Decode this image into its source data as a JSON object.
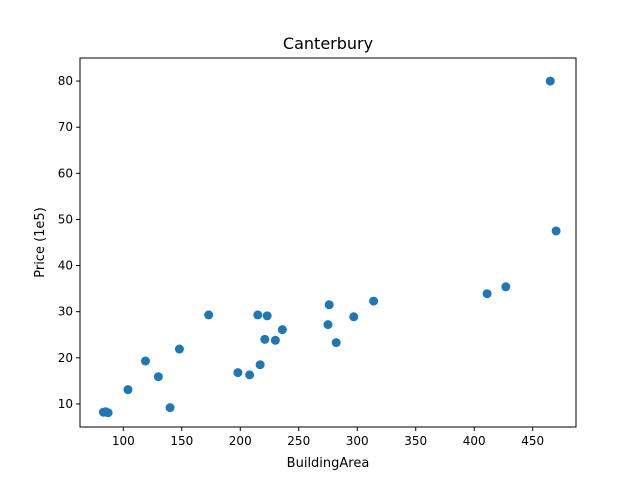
{
  "chart_data": {
    "type": "scatter",
    "title": "Canterbury",
    "xlabel": "BuildingArea",
    "ylabel": "Price (1e5)",
    "xlim": [
      63,
      487
    ],
    "ylim": [
      5,
      85
    ],
    "grid": false,
    "xticks": [
      100,
      150,
      200,
      250,
      300,
      350,
      400,
      450
    ],
    "yticks": [
      10,
      20,
      30,
      40,
      50,
      60,
      70,
      80
    ],
    "marker_color": "#1f77b4",
    "series": [
      {
        "points": [
          {
            "x": 83,
            "y": 8.2
          },
          {
            "x": 85,
            "y": 8.3
          },
          {
            "x": 87,
            "y": 8.1
          },
          {
            "x": 104,
            "y": 13.1
          },
          {
            "x": 119,
            "y": 19.3
          },
          {
            "x": 130,
            "y": 15.9
          },
          {
            "x": 140,
            "y": 9.2
          },
          {
            "x": 148,
            "y": 21.9
          },
          {
            "x": 173,
            "y": 29.3
          },
          {
            "x": 198,
            "y": 16.8
          },
          {
            "x": 208,
            "y": 16.3
          },
          {
            "x": 215,
            "y": 29.3
          },
          {
            "x": 217,
            "y": 18.5
          },
          {
            "x": 221,
            "y": 24.0
          },
          {
            "x": 223,
            "y": 29.1
          },
          {
            "x": 230,
            "y": 23.8
          },
          {
            "x": 236,
            "y": 26.1
          },
          {
            "x": 275,
            "y": 27.2
          },
          {
            "x": 276,
            "y": 31.5
          },
          {
            "x": 282,
            "y": 23.3
          },
          {
            "x": 297,
            "y": 28.9
          },
          {
            "x": 314,
            "y": 32.3
          },
          {
            "x": 411,
            "y": 33.9
          },
          {
            "x": 427,
            "y": 35.4
          },
          {
            "x": 465,
            "y": 80.0
          },
          {
            "x": 470,
            "y": 47.5
          }
        ]
      }
    ]
  }
}
